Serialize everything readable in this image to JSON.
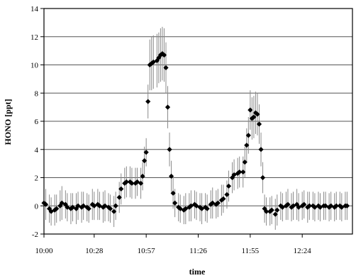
{
  "chart_data": {
    "type": "scatter",
    "xlabel": "time",
    "ylabel": "HONO [ppt]",
    "x_ticks": [
      "10:00",
      "10:28",
      "10:57",
      "11:26",
      "11:55",
      "12:24"
    ],
    "y_ticks": [
      -2,
      0,
      2,
      4,
      6,
      8,
      10,
      12,
      14
    ],
    "xlim": [
      "10:00",
      "12:52"
    ],
    "ylim": [
      -2,
      14
    ],
    "grid": "horizontal",
    "legend": "none",
    "series": [
      {
        "marker": "diamond",
        "color": "#000000",
        "error_bar_color": "#8a8a8a",
        "points": [
          {
            "x": "10:00",
            "y": 0.2,
            "err": 1.0
          },
          {
            "x": "10:01",
            "y": 0.1,
            "err": 1.1
          },
          {
            "x": "10:03",
            "y": -0.2,
            "err": 1.0
          },
          {
            "x": "10:04",
            "y": -0.4,
            "err": 1.0
          },
          {
            "x": "10:06",
            "y": -0.3,
            "err": 1.1
          },
          {
            "x": "10:07",
            "y": -0.2,
            "err": 1.0
          },
          {
            "x": "10:09",
            "y": 0.0,
            "err": 1.1
          },
          {
            "x": "10:10",
            "y": 0.2,
            "err": 1.2
          },
          {
            "x": "10:12",
            "y": 0.1,
            "err": 1.0
          },
          {
            "x": "10:13",
            "y": -0.1,
            "err": 1.0
          },
          {
            "x": "10:15",
            "y": -0.2,
            "err": 1.1
          },
          {
            "x": "10:16",
            "y": -0.1,
            "err": 1.0
          },
          {
            "x": "10:18",
            "y": -0.2,
            "err": 1.1
          },
          {
            "x": "10:19",
            "y": 0.0,
            "err": 1.0
          },
          {
            "x": "10:21",
            "y": -0.1,
            "err": 1.1
          },
          {
            "x": "10:22",
            "y": 0.0,
            "err": 1.0
          },
          {
            "x": "10:24",
            "y": -0.1,
            "err": 1.0
          },
          {
            "x": "10:25",
            "y": -0.2,
            "err": 1.0
          },
          {
            "x": "10:27",
            "y": 0.1,
            "err": 1.1
          },
          {
            "x": "10:28",
            "y": 0.0,
            "err": 1.0
          },
          {
            "x": "10:30",
            "y": 0.1,
            "err": 1.1
          },
          {
            "x": "10:31",
            "y": 0.0,
            "err": 1.0
          },
          {
            "x": "10:33",
            "y": -0.1,
            "err": 1.1
          },
          {
            "x": "10:34",
            "y": 0.0,
            "err": 1.1
          },
          {
            "x": "10:36",
            "y": -0.1,
            "err": 1.0
          },
          {
            "x": "10:37",
            "y": -0.2,
            "err": 1.0
          },
          {
            "x": "10:39",
            "y": -0.4,
            "err": 1.1
          },
          {
            "x": "10:40",
            "y": 0.0,
            "err": 1.0
          },
          {
            "x": "10:42",
            "y": 0.6,
            "err": 1.1
          },
          {
            "x": "10:43",
            "y": 1.2,
            "err": 1.1
          },
          {
            "x": "10:45",
            "y": 1.6,
            "err": 1.1
          },
          {
            "x": "10:46",
            "y": 1.7,
            "err": 1.1
          },
          {
            "x": "10:48",
            "y": 1.7,
            "err": 1.1
          },
          {
            "x": "10:49",
            "y": 1.6,
            "err": 1.1
          },
          {
            "x": "10:51",
            "y": 1.6,
            "err": 1.1
          },
          {
            "x": "10:52",
            "y": 1.7,
            "err": 1.0
          },
          {
            "x": "10:54",
            "y": 1.6,
            "err": 1.1
          },
          {
            "x": "10:55",
            "y": 2.1,
            "err": 1.0
          },
          {
            "x": "10:56",
            "y": 3.2,
            "err": 1.0
          },
          {
            "x": "10:57",
            "y": 3.8,
            "err": 1.0
          },
          {
            "x": "10:58",
            "y": 7.4,
            "err": 1.2
          },
          {
            "x": "10:59",
            "y": 10.0,
            "err": 1.8
          },
          {
            "x": "11:00",
            "y": 10.1,
            "err": 1.9
          },
          {
            "x": "11:01",
            "y": 10.2,
            "err": 1.9
          },
          {
            "x": "11:03",
            "y": 10.3,
            "err": 1.9
          },
          {
            "x": "11:04",
            "y": 10.5,
            "err": 1.8
          },
          {
            "x": "11:05",
            "y": 10.7,
            "err": 1.9
          },
          {
            "x": "11:06",
            "y": 10.8,
            "err": 1.9
          },
          {
            "x": "11:07",
            "y": 10.7,
            "err": 1.9
          },
          {
            "x": "11:08",
            "y": 9.8,
            "err": 1.8
          },
          {
            "x": "11:09",
            "y": 7.0,
            "err": 1.5
          },
          {
            "x": "11:10",
            "y": 4.0,
            "err": 1.2
          },
          {
            "x": "11:11",
            "y": 2.1,
            "err": 1.1
          },
          {
            "x": "11:12",
            "y": 0.9,
            "err": 1.1
          },
          {
            "x": "11:13",
            "y": 0.2,
            "err": 1.0
          },
          {
            "x": "11:15",
            "y": -0.1,
            "err": 1.0
          },
          {
            "x": "11:16",
            "y": -0.2,
            "err": 1.0
          },
          {
            "x": "11:18",
            "y": -0.3,
            "err": 1.0
          },
          {
            "x": "11:19",
            "y": -0.2,
            "err": 1.1
          },
          {
            "x": "11:21",
            "y": -0.1,
            "err": 1.0
          },
          {
            "x": "11:22",
            "y": 0.0,
            "err": 1.1
          },
          {
            "x": "11:24",
            "y": 0.1,
            "err": 1.0
          },
          {
            "x": "11:25",
            "y": 0.0,
            "err": 1.0
          },
          {
            "x": "11:27",
            "y": -0.1,
            "err": 1.0
          },
          {
            "x": "11:28",
            "y": -0.2,
            "err": 1.1
          },
          {
            "x": "11:30",
            "y": -0.1,
            "err": 1.0
          },
          {
            "x": "11:31",
            "y": -0.2,
            "err": 1.0
          },
          {
            "x": "11:33",
            "y": 0.1,
            "err": 1.0
          },
          {
            "x": "11:34",
            "y": 0.2,
            "err": 1.1
          },
          {
            "x": "11:36",
            "y": 0.1,
            "err": 1.0
          },
          {
            "x": "11:37",
            "y": 0.2,
            "err": 1.0
          },
          {
            "x": "11:39",
            "y": 0.4,
            "err": 1.1
          },
          {
            "x": "11:40",
            "y": 0.5,
            "err": 1.0
          },
          {
            "x": "11:42",
            "y": 0.8,
            "err": 1.0
          },
          {
            "x": "11:43",
            "y": 1.4,
            "err": 1.1
          },
          {
            "x": "11:45",
            "y": 2.0,
            "err": 1.1
          },
          {
            "x": "11:46",
            "y": 2.2,
            "err": 1.1
          },
          {
            "x": "11:48",
            "y": 2.3,
            "err": 1.1
          },
          {
            "x": "11:49",
            "y": 2.4,
            "err": 1.1
          },
          {
            "x": "11:51",
            "y": 2.4,
            "err": 1.1
          },
          {
            "x": "11:52",
            "y": 3.1,
            "err": 1.1
          },
          {
            "x": "11:53",
            "y": 4.3,
            "err": 1.2
          },
          {
            "x": "11:54",
            "y": 5.0,
            "err": 1.3
          },
          {
            "x": "11:55",
            "y": 6.8,
            "err": 1.4
          },
          {
            "x": "11:56",
            "y": 6.2,
            "err": 1.5
          },
          {
            "x": "11:57",
            "y": 6.3,
            "err": 1.5
          },
          {
            "x": "11:58",
            "y": 6.6,
            "err": 1.5
          },
          {
            "x": "11:59",
            "y": 6.5,
            "err": 1.5
          },
          {
            "x": "12:00",
            "y": 5.8,
            "err": 1.4
          },
          {
            "x": "12:01",
            "y": 4.0,
            "err": 1.2
          },
          {
            "x": "12:02",
            "y": 2.0,
            "err": 1.1
          },
          {
            "x": "12:03",
            "y": -0.2,
            "err": 1.0
          },
          {
            "x": "12:04",
            "y": -0.4,
            "err": 1.0
          },
          {
            "x": "12:06",
            "y": -0.4,
            "err": 1.0
          },
          {
            "x": "12:07",
            "y": -0.3,
            "err": 1.0
          },
          {
            "x": "12:09",
            "y": -0.6,
            "err": 1.1
          },
          {
            "x": "12:10",
            "y": -0.3,
            "err": 1.1
          },
          {
            "x": "12:12",
            "y": 0.0,
            "err": 1.0
          },
          {
            "x": "12:13",
            "y": -0.1,
            "err": 1.0
          },
          {
            "x": "12:15",
            "y": 0.0,
            "err": 1.0
          },
          {
            "x": "12:16",
            "y": 0.1,
            "err": 1.1
          },
          {
            "x": "12:18",
            "y": -0.1,
            "err": 1.0
          },
          {
            "x": "12:19",
            "y": 0.0,
            "err": 1.0
          },
          {
            "x": "12:21",
            "y": 0.1,
            "err": 1.1
          },
          {
            "x": "12:22",
            "y": -0.1,
            "err": 1.0
          },
          {
            "x": "12:24",
            "y": 0.0,
            "err": 1.0
          },
          {
            "x": "12:25",
            "y": 0.1,
            "err": 1.0
          },
          {
            "x": "12:27",
            "y": -0.1,
            "err": 1.1
          },
          {
            "x": "12:28",
            "y": 0.0,
            "err": 1.0
          },
          {
            "x": "12:30",
            "y": 0.0,
            "err": 1.0
          },
          {
            "x": "12:31",
            "y": -0.1,
            "err": 1.0
          },
          {
            "x": "12:33",
            "y": 0.0,
            "err": 1.0
          },
          {
            "x": "12:34",
            "y": -0.1,
            "err": 1.0
          },
          {
            "x": "12:36",
            "y": 0.0,
            "err": 1.0
          },
          {
            "x": "12:37",
            "y": 0.0,
            "err": 1.0
          },
          {
            "x": "12:39",
            "y": -0.1,
            "err": 1.0
          },
          {
            "x": "12:40",
            "y": 0.0,
            "err": 1.0
          },
          {
            "x": "12:42",
            "y": -0.1,
            "err": 1.0
          },
          {
            "x": "12:43",
            "y": 0.0,
            "err": 1.0
          },
          {
            "x": "12:45",
            "y": 0.0,
            "err": 1.0
          },
          {
            "x": "12:46",
            "y": -0.1,
            "err": 1.0
          },
          {
            "x": "12:48",
            "y": 0.0,
            "err": 1.0
          },
          {
            "x": "12:49",
            "y": 0.0,
            "err": 1.0
          }
        ]
      }
    ]
  }
}
